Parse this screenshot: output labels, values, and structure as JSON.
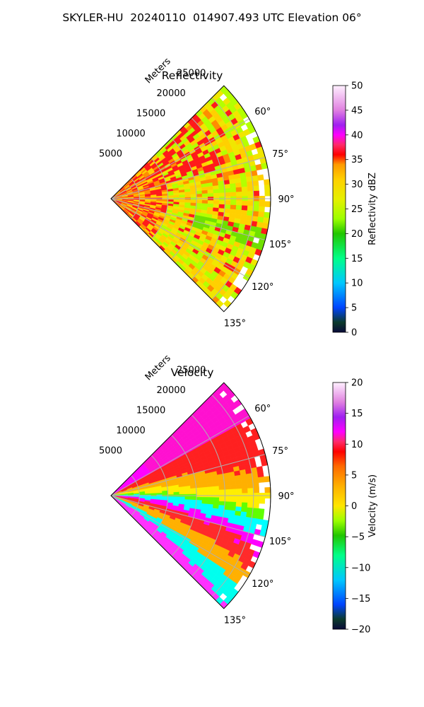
{
  "suptitle": "SKYLER-HU  20240110  014907.493 UTC Elevation 06°",
  "chart_data": [
    {
      "type": "heatmap",
      "projection": "polar-sector",
      "title": "Reflectivity",
      "range_label": "Meters",
      "range_ticks": [
        5000,
        10000,
        15000,
        20000,
        25000
      ],
      "range_tick_labels": [
        "5000",
        "10000",
        "15000",
        "20000",
        "25000"
      ],
      "azimuth_ticks": [
        60,
        75,
        90,
        105,
        120,
        135
      ],
      "azimuth_tick_labels": [
        "60°",
        "75°",
        "90°",
        "105°",
        "120°",
        "135°"
      ],
      "azimuth_range": [
        45,
        135
      ],
      "range_max": 28000,
      "colorbar": {
        "label": "Reflectivity dBZ",
        "range": [
          0,
          50
        ],
        "ticks": [
          0,
          5,
          10,
          15,
          20,
          25,
          30,
          35,
          40,
          45,
          50
        ],
        "tick_labels": [
          "0",
          "5",
          "10",
          "15",
          "20",
          "25",
          "30",
          "35",
          "40",
          "45",
          "50"
        ]
      }
    },
    {
      "type": "heatmap",
      "projection": "polar-sector",
      "title": "Velocity",
      "range_label": "Meters",
      "range_ticks": [
        5000,
        10000,
        15000,
        20000,
        25000
      ],
      "range_tick_labels": [
        "5000",
        "10000",
        "15000",
        "20000",
        "25000"
      ],
      "azimuth_ticks": [
        60,
        75,
        90,
        105,
        120,
        135
      ],
      "azimuth_tick_labels": [
        "60°",
        "75°",
        "90°",
        "105°",
        "120°",
        "135°"
      ],
      "azimuth_range": [
        45,
        135
      ],
      "range_max": 28000,
      "colorbar": {
        "label": "Velocity (m/s)",
        "range": [
          -20,
          20
        ],
        "ticks": [
          -20,
          -15,
          -10,
          -5,
          0,
          5,
          10,
          15,
          20
        ],
        "tick_labels": [
          "−20",
          "−15",
          "−10",
          "−5",
          "0",
          "5",
          "10",
          "15",
          "20"
        ]
      }
    }
  ],
  "colors": {
    "refl_low": "#00ff00",
    "refl_mid": "#ffd000",
    "refl_high": "#ff0000",
    "vel_neg": "#00ffff",
    "vel_zero": "#ffee00",
    "vel_pos": "#ff00ff",
    "grid": "#b0b0b0"
  }
}
